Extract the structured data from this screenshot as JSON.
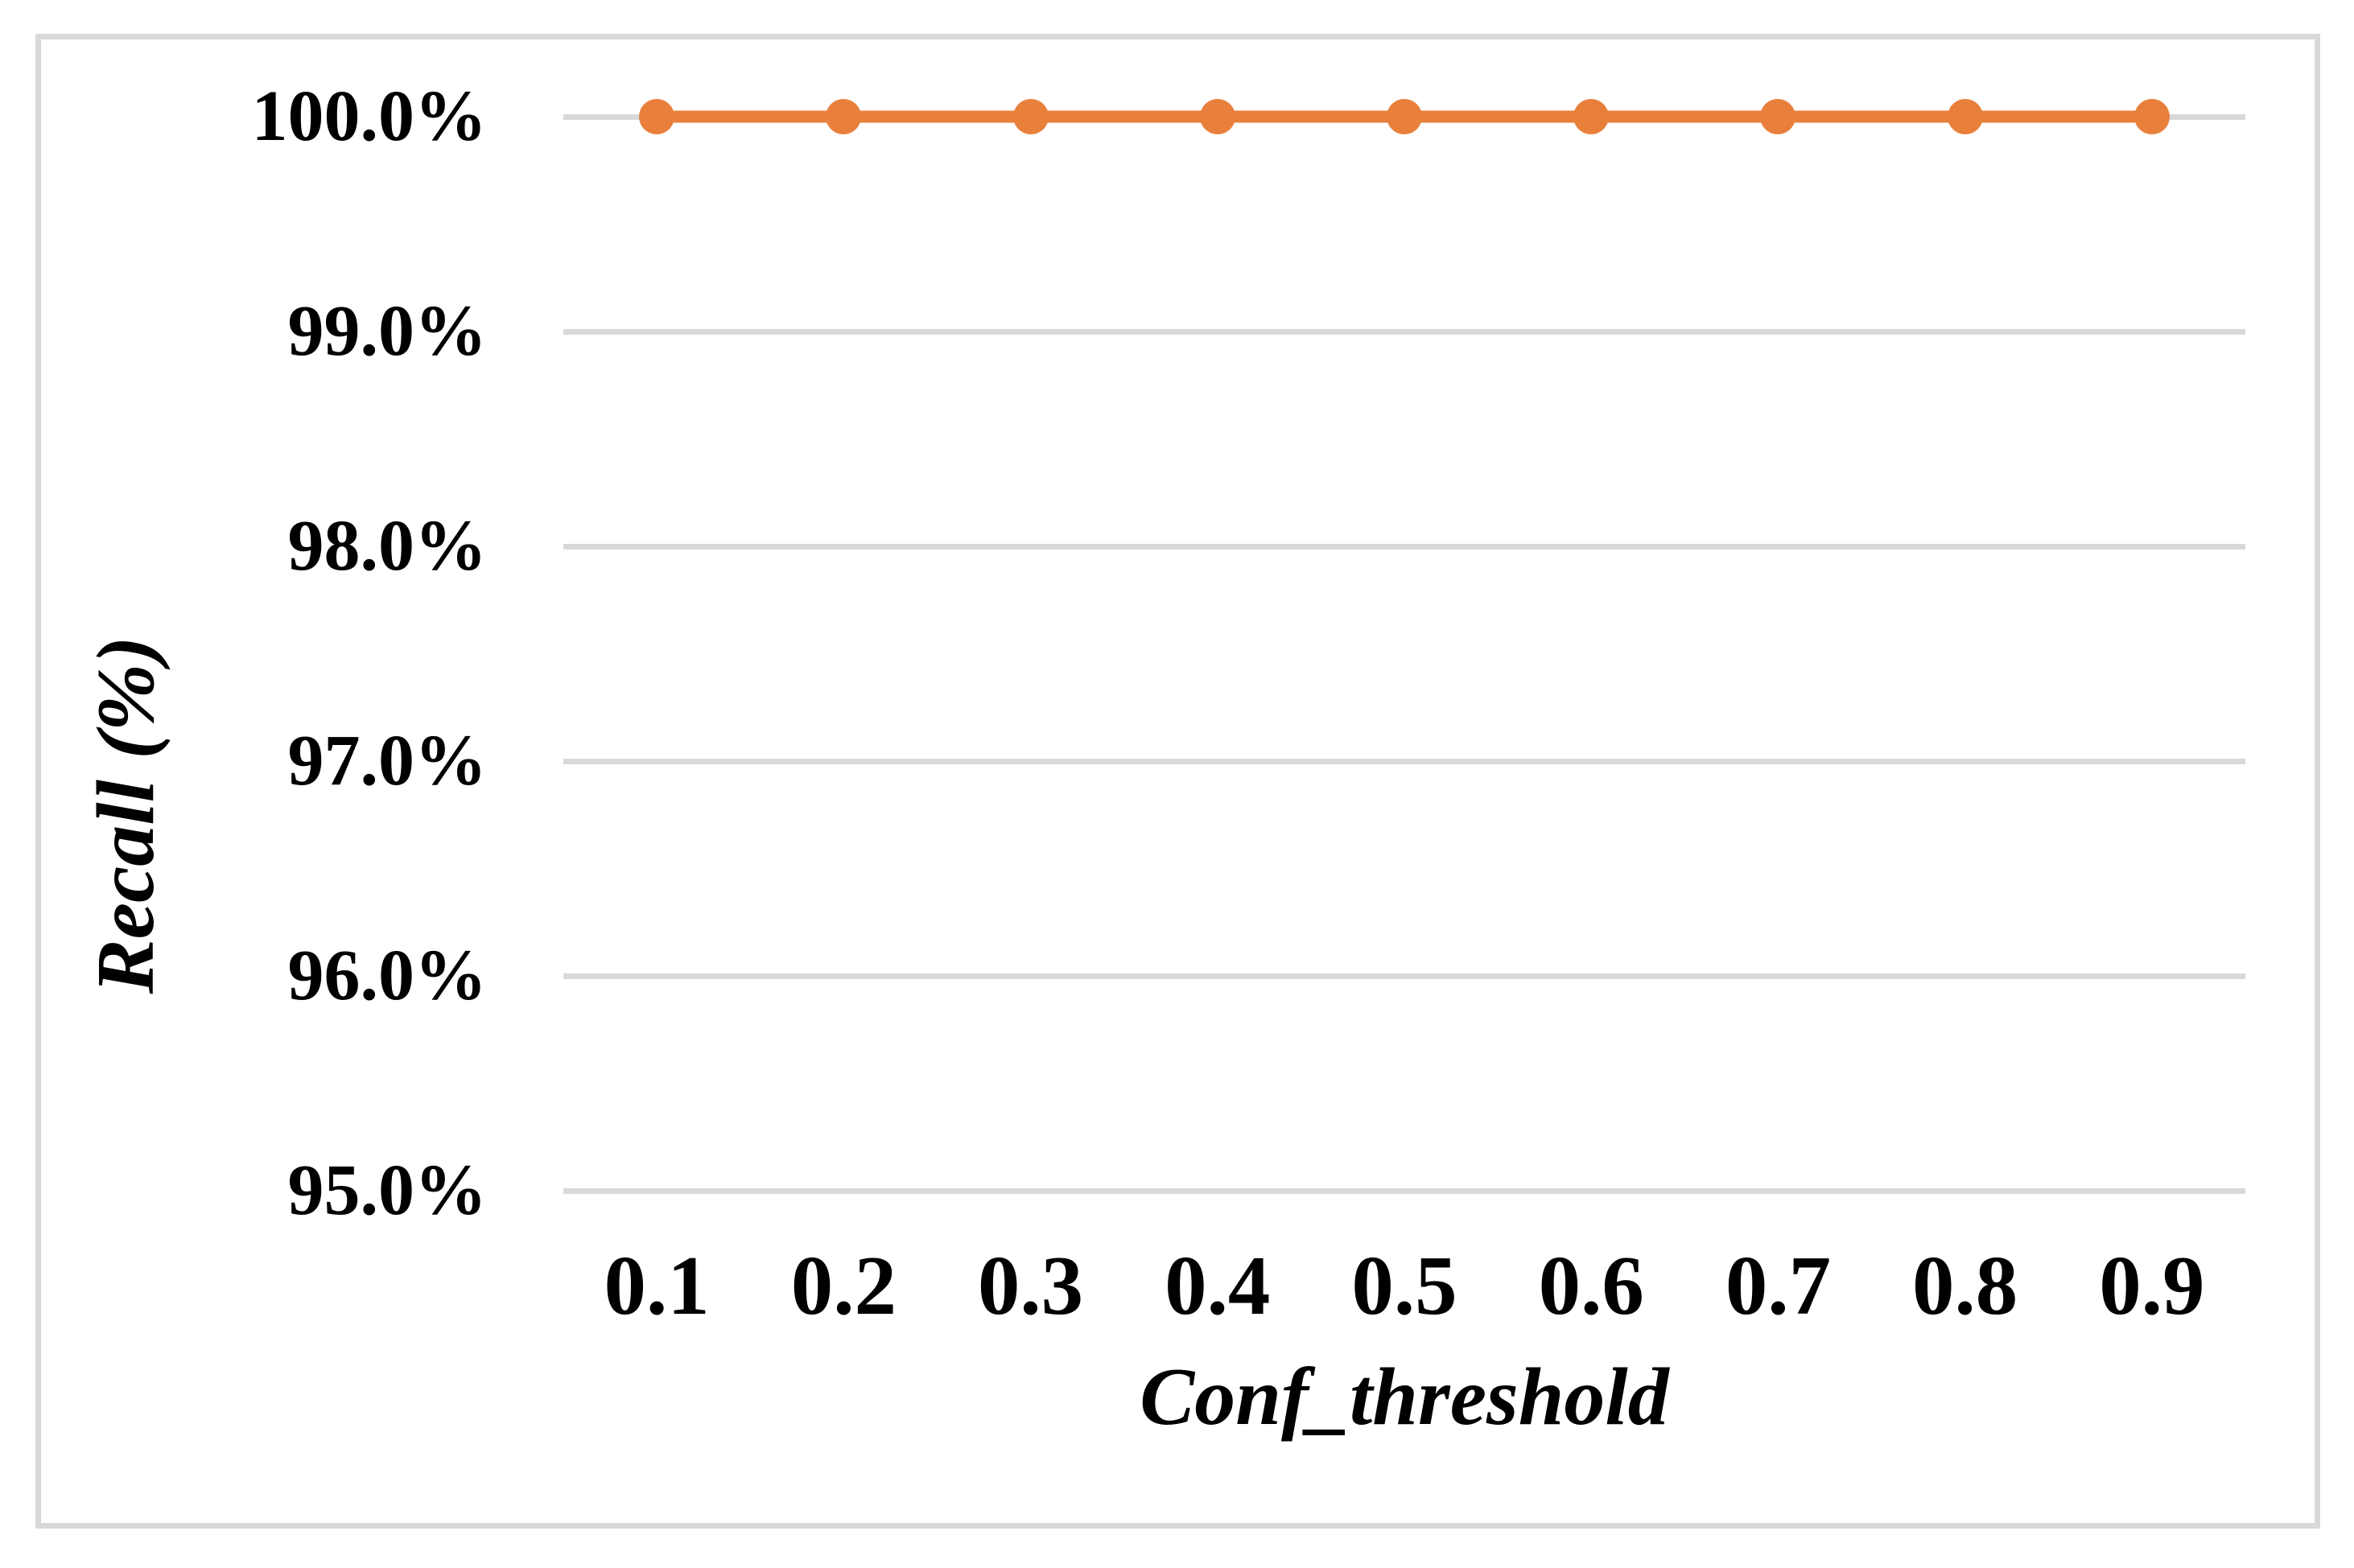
{
  "chart_data": {
    "type": "line",
    "categories": [
      "0.1",
      "0.2",
      "0.3",
      "0.4",
      "0.5",
      "0.6",
      "0.7",
      "0.8",
      "0.9"
    ],
    "series": [
      {
        "name": "Recall",
        "values": [
          100.0,
          100.0,
          100.0,
          100.0,
          100.0,
          100.0,
          100.0,
          100.0,
          100.0
        ]
      }
    ],
    "title": "",
    "xlabel": "Conf_threshold",
    "ylabel": "Recall (%)",
    "ylim": [
      95.0,
      100.0
    ],
    "y_tick_labels": [
      "100.0%",
      "99.0%",
      "98.0%",
      "97.0%",
      "96.0%",
      "95.0%"
    ],
    "grid": "horizontal-only",
    "legend_position": "none",
    "colors": {
      "series_line": "#e8803c",
      "series_marker": "#e8803c",
      "gridline": "#d9d9d9",
      "frame_border": "#d9d9d9",
      "text": "#000000",
      "background": "#ffffff"
    }
  }
}
